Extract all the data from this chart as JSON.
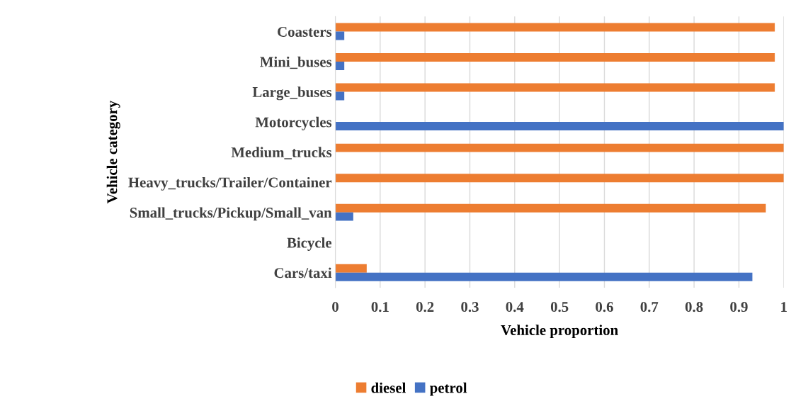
{
  "chart_data": {
    "type": "bar",
    "orientation": "horizontal",
    "categories": [
      "Coasters",
      "Mini_buses",
      "Large_buses",
      "Motorcycles",
      "Medium_trucks",
      "Heavy_trucks/Trailer/Container",
      "Small_trucks/Pickup/Small_van",
      "Bicycle",
      "Cars/taxi"
    ],
    "series": [
      {
        "name": "diesel",
        "color": "#ed7d31",
        "values": [
          0.98,
          0.98,
          0.98,
          0,
          1,
          1,
          0.96,
          0,
          0.07
        ]
      },
      {
        "name": "petrol",
        "color": "#4472c4",
        "values": [
          0.02,
          0.02,
          0.02,
          1,
          0,
          0,
          0.04,
          0,
          0.93
        ]
      }
    ],
    "xlabel": "Vehicle proportion",
    "ylabel": "Vehicle category",
    "xlim": [
      0,
      1
    ],
    "xticks": [
      0,
      0.1,
      0.2,
      0.3,
      0.4,
      0.5,
      0.6,
      0.7,
      0.8,
      0.9,
      1
    ],
    "grid": "x",
    "legend": "bottom"
  }
}
